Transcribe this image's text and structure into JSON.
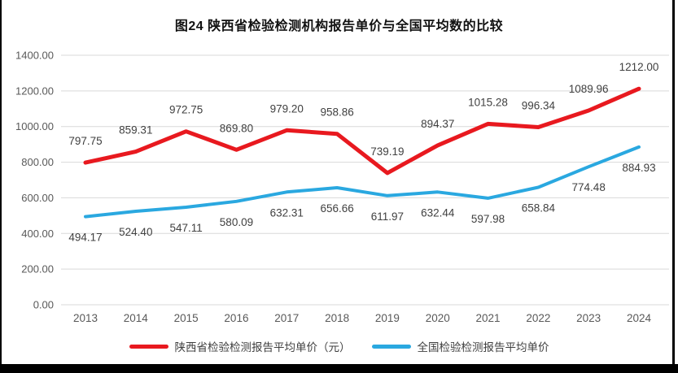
{
  "title": "图24 陕西省检验检测机构报告单价与全国平均数的比较",
  "chart_data": {
    "type": "line",
    "categories": [
      "2013",
      "2014",
      "2015",
      "2016",
      "2017",
      "2018",
      "2019",
      "2020",
      "2021",
      "2022",
      "2023",
      "2024"
    ],
    "series": [
      {
        "name": "陕西省检验检测报告平均单价（元）",
        "color": "#e8191f",
        "stroke_width": 5,
        "label_side": "above",
        "values": [
          797.75,
          859.31,
          972.75,
          869.8,
          979.2,
          958.86,
          739.19,
          894.37,
          1015.28,
          996.34,
          1089.96,
          1212.0
        ]
      },
      {
        "name": "全国检验检测报告平均单价",
        "color": "#2aa8e0",
        "stroke_width": 4,
        "label_side": "below",
        "values": [
          494.17,
          524.4,
          547.11,
          580.09,
          632.31,
          656.66,
          611.97,
          632.44,
          597.98,
          658.84,
          774.48,
          884.93
        ]
      }
    ],
    "ylim": [
      0,
      1400
    ],
    "ytick_step": 200,
    "ytick_labels": [
      "0.00",
      "200.00",
      "400.00",
      "600.00",
      "800.00",
      "1000.00",
      "1200.00",
      "1400.00"
    ],
    "grid": true,
    "gridline_color": "#d9d9d9",
    "tick_label_color": "#595959",
    "data_label_color": "#404040",
    "legend_position": "bottom",
    "xlabel": "",
    "ylabel": ""
  }
}
